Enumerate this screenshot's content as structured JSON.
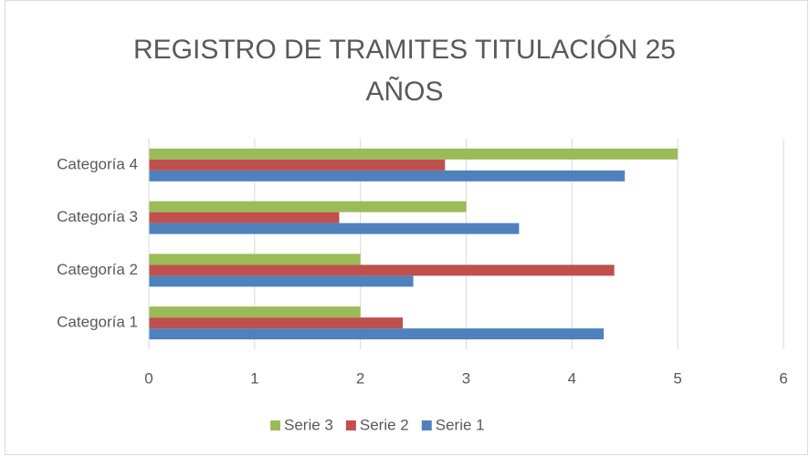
{
  "chart_data": {
    "type": "barh",
    "title": "REGISTRO DE TRAMITES TITULACIÓN 25 AÑOS",
    "categories": [
      "Categoría 1",
      "Categoría 2",
      "Categoría 3",
      "Categoría 4"
    ],
    "series": [
      {
        "name": "Serie 1",
        "color": "#4f81bd",
        "values": [
          4.3,
          2.5,
          3.5,
          4.5
        ]
      },
      {
        "name": "Serie 2",
        "color": "#c0504d",
        "values": [
          2.4,
          4.4,
          1.8,
          2.8
        ]
      },
      {
        "name": "Serie 3",
        "color": "#9bbb59",
        "values": [
          2,
          2,
          3,
          5
        ]
      }
    ],
    "xlim": [
      0,
      6
    ],
    "xticks": [
      0,
      1,
      2,
      3,
      4,
      5,
      6
    ],
    "grid": true,
    "legend": "bottom"
  }
}
